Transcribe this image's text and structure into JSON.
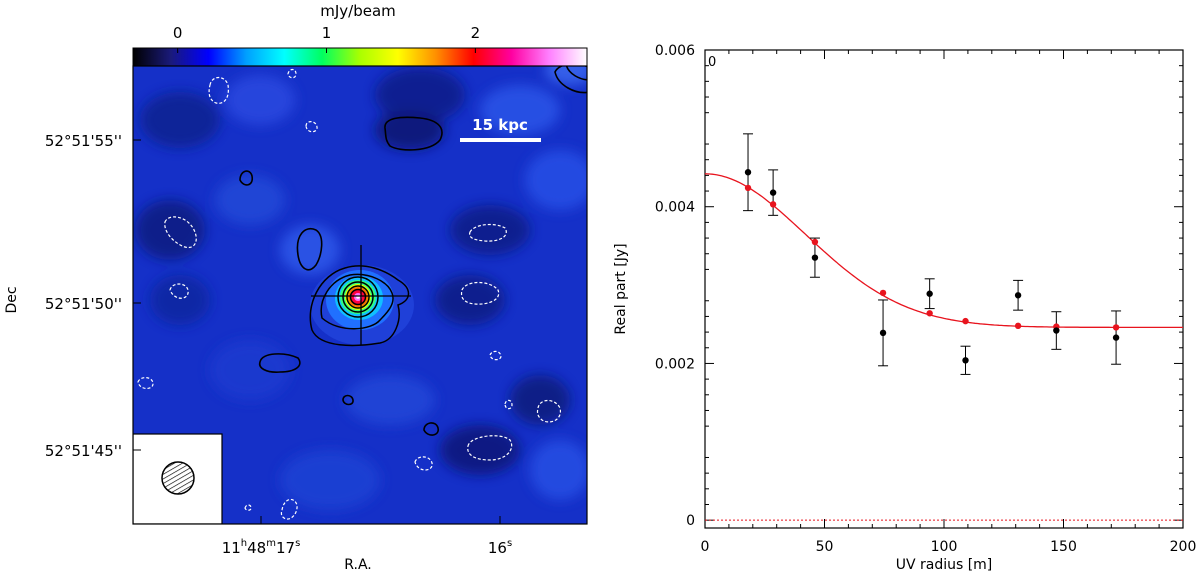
{
  "colorbar": {
    "label": "mJy/beam",
    "ticks": [
      {
        "value": 0,
        "label": "0"
      },
      {
        "value": 1,
        "label": "1"
      },
      {
        "value": 2,
        "label": "2"
      }
    ],
    "range": [
      -0.3,
      2.75
    ],
    "colors": [
      "#000000",
      "#1a1a7a",
      "#0000ff",
      "#00a0ff",
      "#00ffff",
      "#00ff60",
      "#aaff00",
      "#ffff00",
      "#ff9000",
      "#ff0000",
      "#ff00a0",
      "#ff80ff",
      "#ffffff"
    ]
  },
  "map": {
    "ylabel": "Dec",
    "xlabel": "R.A.",
    "yticks": [
      "52°51'55''",
      "52°51'50''",
      "52°51'45''"
    ],
    "xticks": [
      {
        "h": "11",
        "m": "48",
        "s": "17"
      },
      {
        "h": "",
        "m": "",
        "s": "16"
      }
    ],
    "scalebar_label": "15 kpc",
    "background_color": "#1530c8"
  },
  "chart_data": {
    "type": "scatter",
    "xlabel": "UV radius [m]",
    "ylabel": "Real part [Jy]",
    "panel_label": "0",
    "xlim": [
      0,
      200
    ],
    "ylim": [
      -0.0001,
      0.006
    ],
    "xticks": [
      0,
      50,
      100,
      150,
      200
    ],
    "yticks": [
      0,
      0.002,
      0.004,
      0.006
    ],
    "ytick_labels": [
      "0",
      "0.002",
      "0.004",
      "0.006"
    ],
    "series": [
      {
        "x": [
          18,
          28.5,
          46,
          74.5,
          94,
          109,
          131,
          147,
          172
        ],
        "y": [
          0.00444,
          0.00418,
          0.00335,
          0.00239,
          0.00289,
          0.00204,
          0.00287,
          0.00242,
          0.00233
        ],
        "err": [
          0.00049,
          0.00029,
          0.00025,
          0.00042,
          0.00019,
          0.00018,
          0.00019,
          0.00024,
          0.00034
        ]
      },
      {
        "x": [
          18,
          28.5,
          46,
          74.5,
          94,
          109,
          131,
          147,
          172
        ],
        "y": [
          0.00424,
          0.00403,
          0.00355,
          0.0029,
          0.00264,
          0.00254,
          0.00248,
          0.00247,
          0.00246
        ]
      }
    ],
    "model": {
      "amplitude_total": 0.00442,
      "amplitude_point": 0.00246,
      "sigma": 42
    },
    "colors": {
      "data": "#000000",
      "model": "#e8141e"
    }
  }
}
